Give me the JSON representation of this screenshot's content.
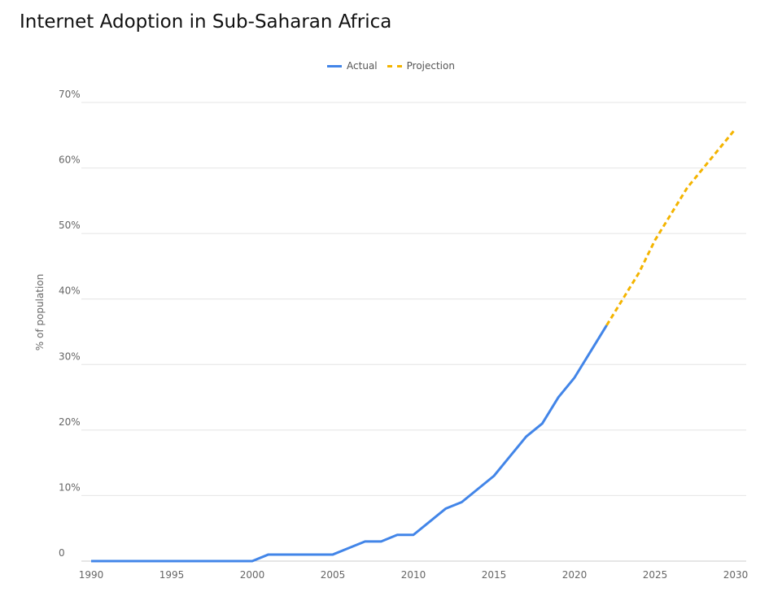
{
  "chart_data": {
    "type": "line",
    "title": "Internet Adoption in Sub-Saharan Africa",
    "xlabel": "",
    "ylabel": "% of population",
    "xlim": [
      1990,
      2030
    ],
    "ylim": [
      0,
      70
    ],
    "x_ticks": [
      "1990",
      "1995",
      "2000",
      "2005",
      "2010",
      "2015",
      "2020",
      "2025",
      "2030"
    ],
    "y_ticks": [
      "0",
      "10%",
      "20%",
      "30%",
      "40%",
      "50%",
      "60%",
      "70%"
    ],
    "grid": true,
    "legend_position": "top",
    "series": [
      {
        "name": "Actual",
        "color": "#4285e8",
        "style": "solid",
        "x": [
          1990,
          1991,
          1992,
          1993,
          1994,
          1995,
          1996,
          1997,
          1998,
          1999,
          2000,
          2001,
          2002,
          2003,
          2004,
          2005,
          2006,
          2007,
          2008,
          2009,
          2010,
          2011,
          2012,
          2013,
          2014,
          2015,
          2016,
          2017,
          2018,
          2019,
          2020,
          2021,
          2022
        ],
        "y": [
          0,
          0,
          0,
          0,
          0,
          0,
          0,
          0,
          0,
          0,
          0,
          1,
          1,
          1,
          1,
          1,
          2,
          3,
          3,
          4,
          4,
          6,
          8,
          9,
          11,
          13,
          16,
          19,
          21,
          25,
          28,
          32,
          36
        ]
      },
      {
        "name": "Projection",
        "color": "#f4b400",
        "style": "dashed",
        "x": [
          2022,
          2023,
          2024,
          2025,
          2026,
          2027,
          2028,
          2029,
          2030
        ],
        "y": [
          36,
          40,
          44,
          49,
          53,
          57,
          60,
          63,
          66
        ]
      }
    ]
  }
}
